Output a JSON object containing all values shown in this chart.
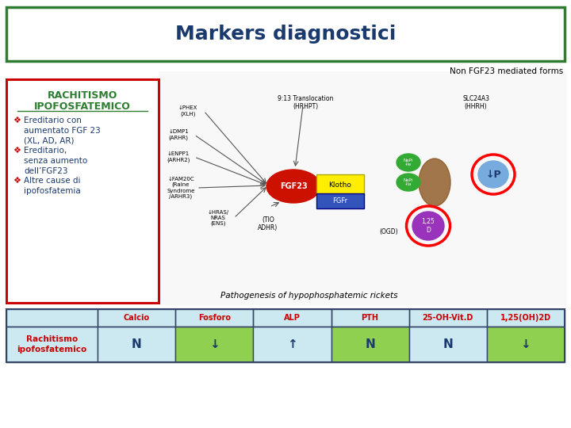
{
  "title": "Markers diagnostici",
  "title_color": "#1a3a6e",
  "title_fontsize": 18,
  "title_box_border_color": "#2e7d32",
  "non_fgf_label": "Non FGF23 mediated forms",
  "left_box_title_line1": "RACHITISMO",
  "left_box_title_line2": "IPOFOSFATEMICO",
  "left_box_title_color": "#2e7d32",
  "left_box_border_color": "#cc0000",
  "left_box_bg": "#ffffff",
  "bullet_items": [
    "Ereditario con\naumentato FGF 23\n(XL, AD, AR)",
    "Ereditario,\nsenza aumento\ndell’FGF23",
    "Altre cause di\nipofosfatemia"
  ],
  "bullet_color": "#cc0000",
  "text_color": "#1a3a6e",
  "table_headers": [
    "Calcio",
    "Fosforo",
    "ALP",
    "PTH",
    "25-OH-Vit.D",
    "1,25(OH)2D"
  ],
  "table_header_color": "#cc0000",
  "table_header_bg": "#cce8f0",
  "table_row_label": "Rachitismo\nipofosfatemico",
  "table_row_label_color": "#cc0000",
  "table_row_label_bg": "#cce8f0",
  "table_values": [
    "N",
    "↓",
    "↑",
    "N",
    "N",
    "↓"
  ],
  "table_value_color": "#1a3a6e",
  "table_cell_bgs": [
    "#cce8f0",
    "#90d050",
    "#cce8f0",
    "#90d050",
    "#cce8f0",
    "#90d050"
  ],
  "bg_color": "#ffffff",
  "table_border_color": "#334466"
}
